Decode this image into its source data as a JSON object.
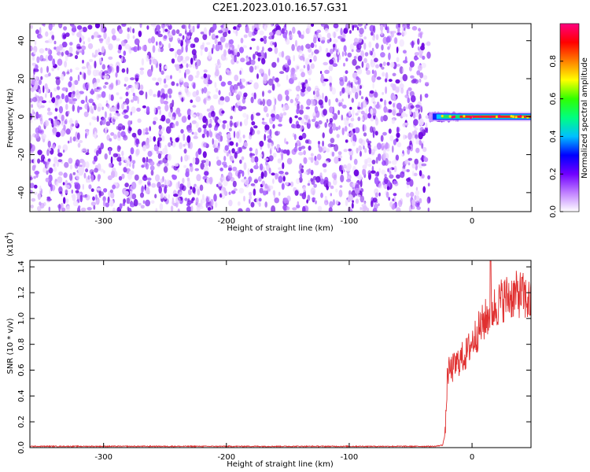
{
  "figure_title": "C2E1.2023.010.16.57.G31",
  "chart_data": [
    {
      "type": "heatmap",
      "xlabel": "Height of straight line (km)",
      "ylabel": "Frequency (Hz)",
      "xlim": [
        -360,
        48
      ],
      "ylim": [
        -50,
        49
      ],
      "xticks": [
        -300,
        -200,
        -100,
        0
      ],
      "xtick_labels": [
        "-300",
        "-200",
        "-100",
        "0"
      ],
      "yticks": [
        40,
        20,
        0,
        -20,
        -40
      ],
      "ytick_labels": [
        "40",
        "20",
        "0",
        "-20",
        "-40"
      ],
      "noise_region_x": [
        -360,
        -35
      ],
      "signal": {
        "x_start": -35,
        "x_end": 48,
        "frequency_hz": 0,
        "strong_from_x": -10
      },
      "colorbar": {
        "label": "Normalized spectral amplitude",
        "range": [
          0.0,
          1.0
        ],
        "ticks": [
          0.0,
          0.2,
          0.4,
          0.6,
          0.8
        ],
        "tick_labels": [
          "0.0",
          "0.2",
          "0.4",
          "0.6",
          "0.8"
        ],
        "colors": [
          "#ffffff",
          "#c080ff",
          "#7000ff",
          "#0000ff",
          "#00c0ff",
          "#00ff80",
          "#30ff00",
          "#ffff00",
          "#ff8000",
          "#ff0000",
          "#ff0080"
        ]
      }
    },
    {
      "type": "line",
      "xlabel": "Height of straight line (km)",
      "ylabel": "SNR (10 * v/v)",
      "multiplier_label": "(x10",
      "multiplier_exp": "4",
      "multiplier_close": ")",
      "xlim": [
        -360,
        48
      ],
      "ylim": [
        0.0,
        1.45
      ],
      "xticks": [
        -300,
        -200,
        -100,
        0
      ],
      "xtick_labels": [
        "-300",
        "-200",
        "-100",
        "0"
      ],
      "yticks": [
        0.0,
        0.2,
        0.4,
        0.6,
        0.8,
        1.0,
        1.2,
        1.4
      ],
      "ytick_labels": [
        "0.0",
        "0.2",
        "0.4",
        "0.6",
        "0.8",
        "1.0",
        "1.2",
        "1.4"
      ],
      "line_color": "#e03030",
      "series": [
        {
          "x": [
            -360,
            -300,
            -200,
            -100,
            -30,
            -24,
            -22,
            -21,
            -20,
            -15,
            -10,
            -5,
            0,
            5,
            10,
            15,
            20,
            25,
            30,
            35,
            40,
            44,
            48
          ],
          "y": [
            0.01,
            0.01,
            0.01,
            0.01,
            0.01,
            0.02,
            0.1,
            0.3,
            0.58,
            0.62,
            0.68,
            0.72,
            0.82,
            0.9,
            0.98,
            1.05,
            1.1,
            1.15,
            1.17,
            1.18,
            1.19,
            1.15,
            1.12
          ]
        }
      ]
    }
  ]
}
